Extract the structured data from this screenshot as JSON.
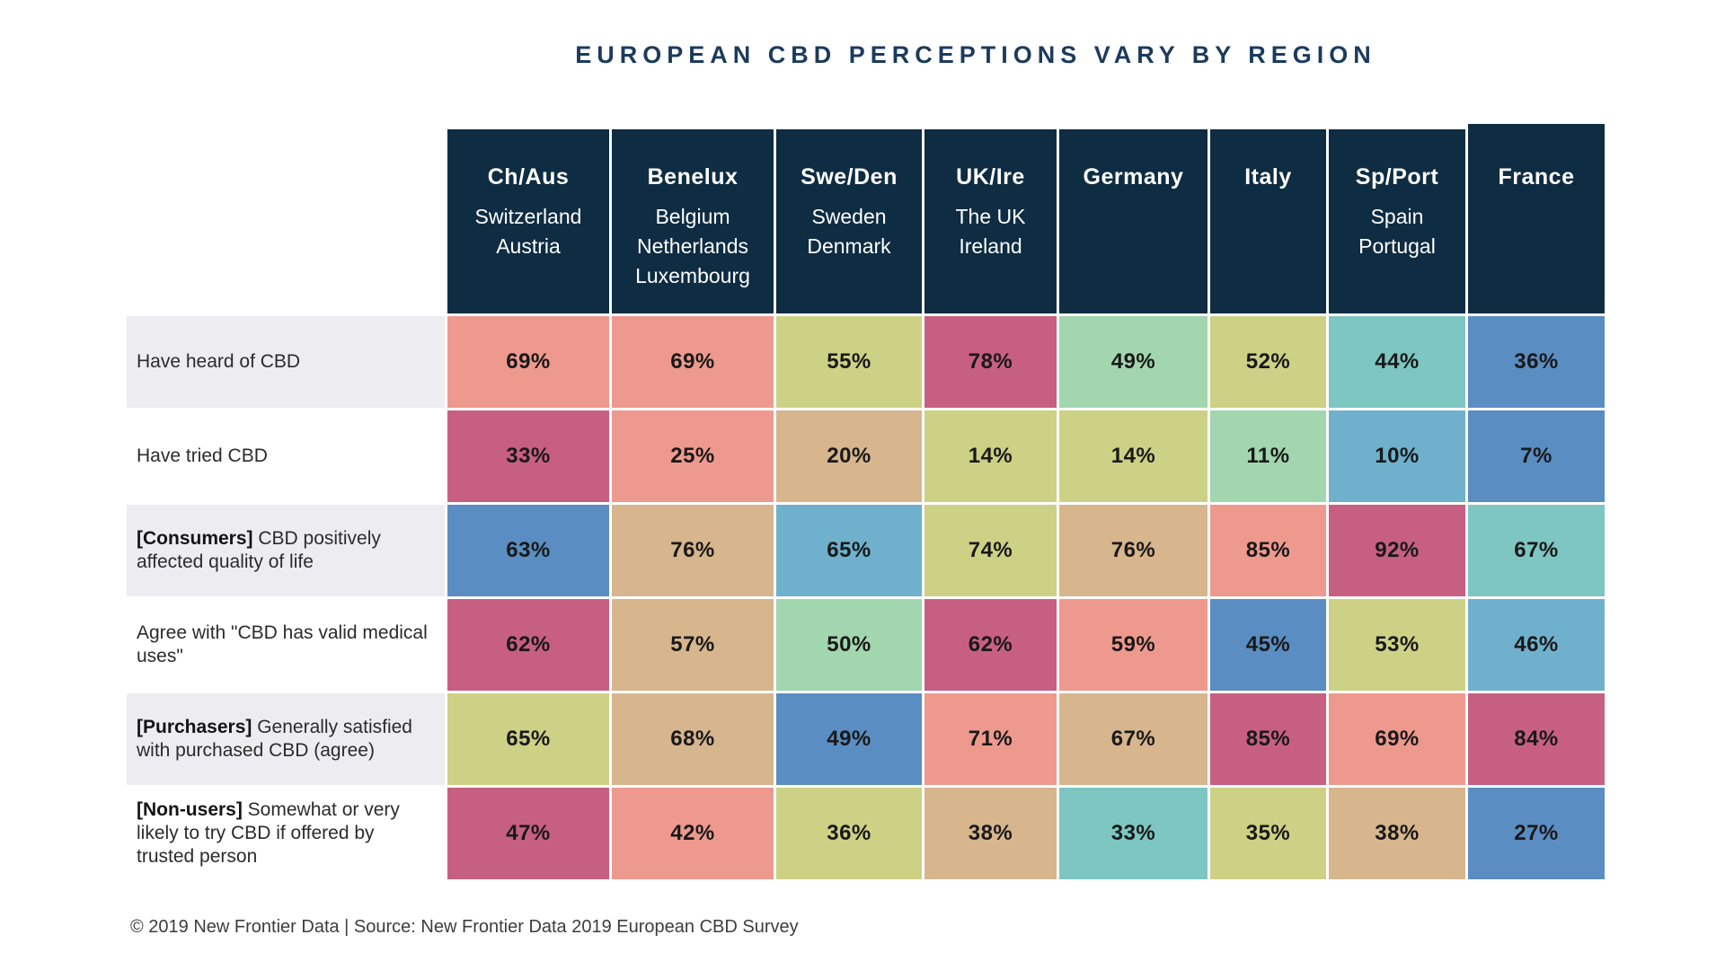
{
  "footer": "© 2019  New Frontier Data | Source:  New Frontier Data 2019 European CBD Survey",
  "chart_data": {
    "type": "heatmap",
    "title": "EUROPEAN CBD PERCEPTIONS VARY BY REGION",
    "unit": "%",
    "legend": "none",
    "columns": [
      {
        "abbr": "Ch/Aus",
        "countries": [
          "Switzerland",
          "Austria"
        ]
      },
      {
        "abbr": "Benelux",
        "countries": [
          "Belgium",
          "Netherlands",
          "Luxembourg"
        ]
      },
      {
        "abbr": "Swe/Den",
        "countries": [
          "Sweden",
          "Denmark"
        ]
      },
      {
        "abbr": "UK/Ire",
        "countries": [
          "The UK",
          "Ireland"
        ]
      },
      {
        "abbr": "Germany",
        "countries": []
      },
      {
        "abbr": "Italy",
        "countries": []
      },
      {
        "abbr": "Sp/Port",
        "countries": [
          "Spain",
          "Portugal"
        ]
      },
      {
        "abbr": "France",
        "countries": []
      }
    ],
    "rows": [
      {
        "label_bold": "",
        "label": "Have heard of CBD"
      },
      {
        "label_bold": "",
        "label": "Have tried CBD"
      },
      {
        "label_bold": "[Consumers]",
        "label": " CBD positively affected quality of life"
      },
      {
        "label_bold": "",
        "label": "Agree with \"CBD has valid medical uses\""
      },
      {
        "label_bold": "[Purchasers]",
        "label": " Generally satisfied with purchased CBD (agree)"
      },
      {
        "label_bold": "[Non-users]",
        "label": " Somewhat or very likely to try CBD if offered by trusted person"
      }
    ],
    "values": [
      [
        69,
        69,
        55,
        78,
        49,
        52,
        44,
        36
      ],
      [
        33,
        25,
        20,
        14,
        14,
        11,
        10,
        7
      ],
      [
        63,
        76,
        65,
        74,
        76,
        85,
        92,
        67
      ],
      [
        62,
        57,
        50,
        62,
        59,
        45,
        53,
        46
      ],
      [
        65,
        68,
        49,
        71,
        67,
        85,
        69,
        84
      ],
      [
        47,
        42,
        36,
        38,
        33,
        35,
        38,
        27
      ]
    ],
    "cells": [
      [
        {
          "text": "69%",
          "color": "salmon"
        },
        {
          "text": "69%",
          "color": "salmon"
        },
        {
          "text": "55%",
          "color": "ylwgreen"
        },
        {
          "text": "78%",
          "color": "magenta"
        },
        {
          "text": "49%",
          "color": "mint"
        },
        {
          "text": "52%",
          "color": "ylwgreen"
        },
        {
          "text": "44%",
          "color": "turquoise"
        },
        {
          "text": "36%",
          "color": "blue"
        }
      ],
      [
        {
          "text": "33%",
          "color": "magenta"
        },
        {
          "text": "25%",
          "color": "salmon"
        },
        {
          "text": "20%",
          "color": "tan"
        },
        {
          "text": "14%",
          "color": "ylwgreen"
        },
        {
          "text": "14%",
          "color": "ylwgreen"
        },
        {
          "text": "11%",
          "color": "mint"
        },
        {
          "text": "10%",
          "color": "steelcyan"
        },
        {
          "text": "7%",
          "color": "blue"
        }
      ],
      [
        {
          "text": "63%",
          "color": "blue"
        },
        {
          "text": "76%",
          "color": "tan"
        },
        {
          "text": "65%",
          "color": "steelcyan"
        },
        {
          "text": "74%",
          "color": "ylwgreen"
        },
        {
          "text": "76%",
          "color": "tan"
        },
        {
          "text": "85%",
          "color": "salmon"
        },
        {
          "text": "92%",
          "color": "magenta"
        },
        {
          "text": "67%",
          "color": "turquoise"
        }
      ],
      [
        {
          "text": "62%",
          "color": "magenta"
        },
        {
          "text": "57%",
          "color": "tan"
        },
        {
          "text": "50%",
          "color": "mint"
        },
        {
          "text": "62%",
          "color": "magenta"
        },
        {
          "text": "59%",
          "color": "salmon"
        },
        {
          "text": "45%",
          "color": "blue"
        },
        {
          "text": "53%",
          "color": "ylwgreen"
        },
        {
          "text": "46%",
          "color": "steelcyan"
        }
      ],
      [
        {
          "text": "65%",
          "color": "ylwgreen"
        },
        {
          "text": "68%",
          "color": "tan"
        },
        {
          "text": "49%",
          "color": "blue"
        },
        {
          "text": "71%",
          "color": "salmon"
        },
        {
          "text": "67%",
          "color": "tan"
        },
        {
          "text": "85%",
          "color": "magenta"
        },
        {
          "text": "69%",
          "color": "salmon"
        },
        {
          "text": "84%",
          "color": "magenta"
        }
      ],
      [
        {
          "text": "47%",
          "color": "magenta"
        },
        {
          "text": "42%",
          "color": "salmon"
        },
        {
          "text": "36%",
          "color": "ylwgreen"
        },
        {
          "text": "38%",
          "color": "tan"
        },
        {
          "text": "33%",
          "color": "turquoise"
        },
        {
          "text": "35%",
          "color": "ylwgreen"
        },
        {
          "text": "38%",
          "color": "tan"
        },
        {
          "text": "27%",
          "color": "blue"
        }
      ]
    ],
    "palette": {
      "blue": "#5a8dc2",
      "steelcyan": "#6fb1cc",
      "turquoise": "#7dc6c1",
      "mint": "#a2d6ae",
      "ylwgreen": "#cdd185",
      "tan": "#d7b58d",
      "salmon": "#ee998e",
      "magenta": "#c75f83"
    },
    "header_bg": "#0e2c42",
    "title_color": "#1c3b5c",
    "label_shade_bg": "#ededf1"
  }
}
